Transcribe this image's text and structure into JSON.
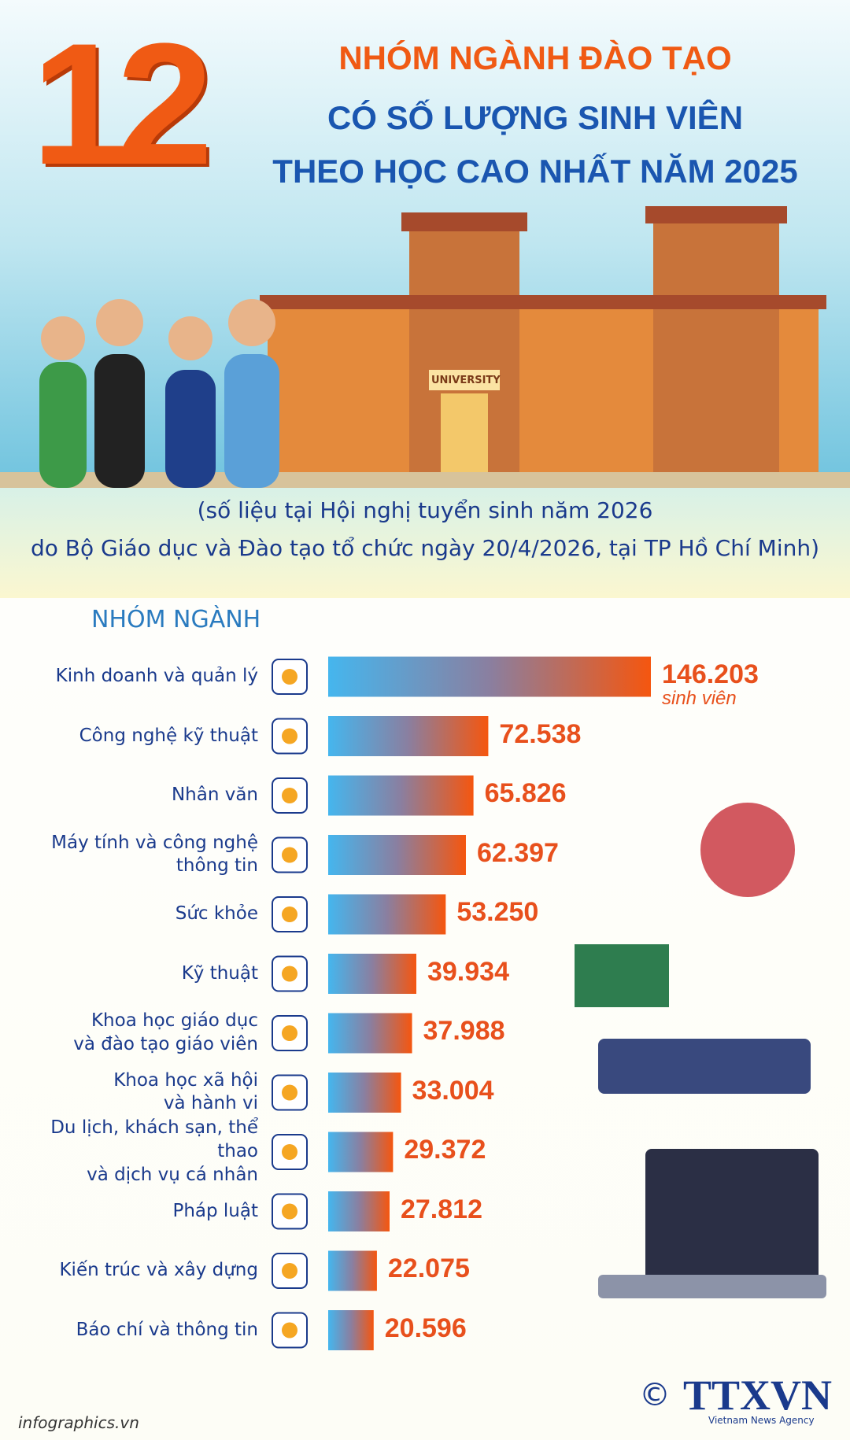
{
  "header": {
    "number": "12",
    "title_lines": [
      "NHÓM NGÀNH ĐÀO TẠO",
      "CÓ SỐ LƯỢNG SINH VIÊN",
      "THEO HỌC CAO NHẤT NĂM 2025"
    ],
    "building_label": "UNIVERSITY"
  },
  "subtitle_lines": [
    "(số liệu tại Hội nghị tuyển sinh năm 2026",
    "do Bộ Giáo dục và Đào tạo tổ chức ngày 20/4/2026, tại TP Hồ Chí Minh)"
  ],
  "chart_data": {
    "type": "bar",
    "orientation": "horizontal",
    "y_label": "NHÓM NGÀNH",
    "unit_label": "sinh viên",
    "categories": [
      "Kinh doanh và quản lý",
      "Công nghệ kỹ thuật",
      "Nhân văn",
      "Máy tính và công nghệ\nthông tin",
      "Sức khỏe",
      "Kỹ thuật",
      "Khoa học giáo dục\nvà đào tạo giáo viên",
      "Khoa học xã hội\nvà hành vi",
      "Du lịch, khách sạn, thể thao\nvà dịch vụ cá nhân",
      "Pháp luật",
      "Kiến trúc và xây dựng",
      "Báo chí và thông tin"
    ],
    "values": [
      146203,
      72538,
      65826,
      62397,
      53250,
      39934,
      37988,
      33004,
      29372,
      27812,
      22075,
      20596
    ],
    "value_labels": [
      "146.203",
      "72.538",
      "65.826",
      "62.397",
      "53.250",
      "39.934",
      "37.988",
      "33.004",
      "29.372",
      "27.812",
      "22.075",
      "20.596"
    ],
    "colors": [
      "#45b6ee",
      "#8a7fa0",
      "#f5560f"
    ]
  },
  "footer": {
    "source": "infographics.vn",
    "copyright": "©",
    "logo": "TTXVN",
    "logo_sub": "Vietnam News Agency"
  }
}
